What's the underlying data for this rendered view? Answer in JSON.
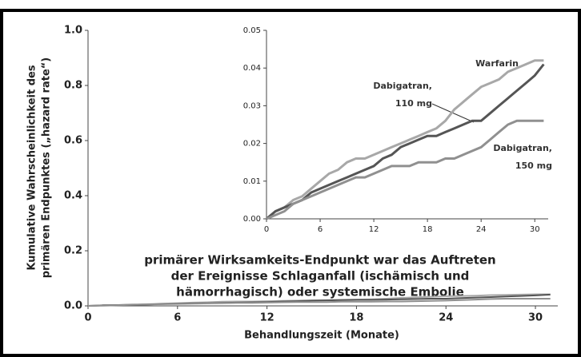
{
  "chart_data": [
    {
      "type": "line",
      "ylabel": [
        "Kumulative Wahrscheinlichkeit des",
        "primären Endpunktes („hazard rate“)"
      ],
      "xlabel": "Behandlungszeit (Monate)",
      "annotations": [
        "primärer Wirksamkeits-Endpunkt war das Auftreten",
        "der Ereignisse Schlaganfall (ischämisch und",
        "hämorrhagisch) oder systemische Embolie"
      ],
      "xlim": [
        0,
        31.5
      ],
      "xticks": [
        0,
        6,
        12,
        18,
        24,
        30
      ],
      "ylim": [
        0,
        1
      ],
      "yticks": [
        {
          "value": 0,
          "label": "0.0"
        },
        0.2,
        0.4,
        0.6,
        0.8,
        {
          "value": 1,
          "label": "1.0"
        }
      ]
    },
    {
      "type": "line",
      "x": [
        0,
        1,
        2,
        3,
        4,
        5,
        6,
        7,
        8,
        9,
        10,
        11,
        12,
        13,
        14,
        15,
        16,
        17,
        18,
        19,
        20,
        21,
        22,
        23,
        24,
        25,
        26,
        27,
        28,
        29,
        30,
        31
      ],
      "series": [
        {
          "name": "Warfarin",
          "color": "#a8a8a8",
          "values": [
            0,
            0.002,
            0.003,
            0.005,
            0.006,
            0.008,
            0.01,
            0.012,
            0.013,
            0.015,
            0.016,
            0.016,
            0.017,
            0.018,
            0.019,
            0.02,
            0.021,
            0.022,
            0.023,
            0.024,
            0.026,
            0.029,
            0.031,
            0.033,
            0.035,
            0.036,
            0.037,
            0.039,
            0.04,
            0.041,
            0.042,
            0.042
          ]
        },
        {
          "name": "Dabigatran, 110 mg",
          "color": "#555555",
          "values": [
            0,
            0.002,
            0.003,
            0.004,
            0.005,
            0.007,
            0.008,
            0.009,
            0.01,
            0.011,
            0.012,
            0.013,
            0.014,
            0.016,
            0.017,
            0.019,
            0.02,
            0.021,
            0.022,
            0.022,
            0.023,
            0.024,
            0.025,
            0.026,
            0.026,
            0.028,
            0.03,
            0.032,
            0.034,
            0.036,
            0.038,
            0.041
          ]
        },
        {
          "name": "Dabigatran, 150 mg",
          "color": "#909090",
          "values": [
            0,
            0.001,
            0.002,
            0.004,
            0.005,
            0.006,
            0.007,
            0.008,
            0.009,
            0.01,
            0.011,
            0.011,
            0.012,
            0.013,
            0.014,
            0.014,
            0.014,
            0.015,
            0.015,
            0.015,
            0.016,
            0.016,
            0.017,
            0.018,
            0.019,
            0.021,
            0.023,
            0.025,
            0.026,
            0.026,
            0.026,
            0.026
          ]
        }
      ],
      "xlim": [
        0,
        31.5
      ],
      "xticks": [
        0,
        6,
        12,
        18,
        24,
        30
      ],
      "ylim": [
        0,
        0.05
      ],
      "yticks": [
        {
          "value": 0,
          "label": "0.00"
        },
        0.01,
        0.02,
        0.03,
        0.04,
        {
          "value": 0.05,
          "label": "0.05"
        }
      ]
    }
  ]
}
